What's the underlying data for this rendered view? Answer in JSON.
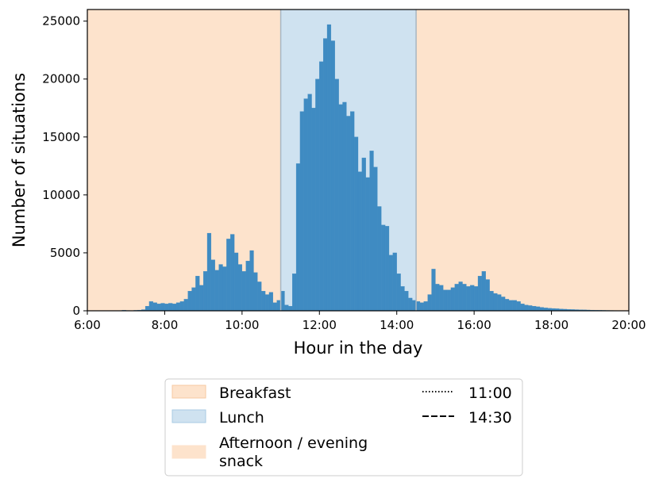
{
  "chart_data": {
    "type": "bar",
    "title": "",
    "xlabel": "Hour in the day",
    "ylabel": "Number of situations",
    "xlim_hours": [
      6,
      20
    ],
    "ylim": [
      0,
      26000
    ],
    "bin_width_hours": 0.1,
    "x_ticks": [
      {
        "hour": 6,
        "label": "6:00"
      },
      {
        "hour": 8,
        "label": "8:00"
      },
      {
        "hour": 10,
        "label": "10:00"
      },
      {
        "hour": 12,
        "label": "12:00"
      },
      {
        "hour": 14,
        "label": "14:00"
      },
      {
        "hour": 16,
        "label": "16:00"
      },
      {
        "hour": 18,
        "label": "18:00"
      },
      {
        "hour": 20,
        "label": "20:00"
      }
    ],
    "y_ticks": [
      {
        "value": 0,
        "label": "0"
      },
      {
        "value": 5000,
        "label": "5000"
      },
      {
        "value": 10000,
        "label": "10000"
      },
      {
        "value": 15000,
        "label": "15000"
      },
      {
        "value": 20000,
        "label": "20000"
      },
      {
        "value": 25000,
        "label": "25000"
      }
    ],
    "grid": false,
    "bar_color": "#3f8bc2",
    "bins": [
      {
        "x": 6.0,
        "y": 0
      },
      {
        "x": 6.1,
        "y": 0
      },
      {
        "x": 6.2,
        "y": 0
      },
      {
        "x": 6.3,
        "y": 0
      },
      {
        "x": 6.4,
        "y": 0
      },
      {
        "x": 6.5,
        "y": 0
      },
      {
        "x": 6.6,
        "y": 0
      },
      {
        "x": 6.7,
        "y": 0
      },
      {
        "x": 6.8,
        "y": 0
      },
      {
        "x": 6.9,
        "y": 50
      },
      {
        "x": 7.0,
        "y": 30
      },
      {
        "x": 7.1,
        "y": 20
      },
      {
        "x": 7.2,
        "y": 40
      },
      {
        "x": 7.3,
        "y": 60
      },
      {
        "x": 7.4,
        "y": 100
      },
      {
        "x": 7.5,
        "y": 400
      },
      {
        "x": 7.6,
        "y": 800
      },
      {
        "x": 7.7,
        "y": 700
      },
      {
        "x": 7.8,
        "y": 600
      },
      {
        "x": 7.9,
        "y": 650
      },
      {
        "x": 8.0,
        "y": 600
      },
      {
        "x": 8.1,
        "y": 650
      },
      {
        "x": 8.2,
        "y": 600
      },
      {
        "x": 8.3,
        "y": 700
      },
      {
        "x": 8.4,
        "y": 800
      },
      {
        "x": 8.5,
        "y": 1000
      },
      {
        "x": 8.6,
        "y": 1700
      },
      {
        "x": 8.7,
        "y": 2000
      },
      {
        "x": 8.8,
        "y": 3000
      },
      {
        "x": 8.9,
        "y": 2200
      },
      {
        "x": 9.0,
        "y": 3400
      },
      {
        "x": 9.1,
        "y": 6700
      },
      {
        "x": 9.2,
        "y": 4400
      },
      {
        "x": 9.3,
        "y": 3500
      },
      {
        "x": 9.4,
        "y": 4000
      },
      {
        "x": 9.5,
        "y": 3800
      },
      {
        "x": 9.6,
        "y": 6200
      },
      {
        "x": 9.7,
        "y": 6600
      },
      {
        "x": 9.8,
        "y": 5000
      },
      {
        "x": 9.9,
        "y": 4000
      },
      {
        "x": 10.0,
        "y": 3400
      },
      {
        "x": 10.1,
        "y": 4300
      },
      {
        "x": 10.2,
        "y": 5200
      },
      {
        "x": 10.3,
        "y": 3300
      },
      {
        "x": 10.4,
        "y": 2500
      },
      {
        "x": 10.5,
        "y": 1700
      },
      {
        "x": 10.6,
        "y": 1400
      },
      {
        "x": 10.7,
        "y": 1600
      },
      {
        "x": 10.8,
        "y": 700
      },
      {
        "x": 10.9,
        "y": 900
      },
      {
        "x": 11.0,
        "y": 1700
      },
      {
        "x": 11.1,
        "y": 500
      },
      {
        "x": 11.2,
        "y": 400
      },
      {
        "x": 11.3,
        "y": 3200
      },
      {
        "x": 11.4,
        "y": 12700
      },
      {
        "x": 11.5,
        "y": 17200
      },
      {
        "x": 11.6,
        "y": 18300
      },
      {
        "x": 11.7,
        "y": 18700
      },
      {
        "x": 11.8,
        "y": 17500
      },
      {
        "x": 11.9,
        "y": 20000
      },
      {
        "x": 12.0,
        "y": 21500
      },
      {
        "x": 12.1,
        "y": 23500
      },
      {
        "x": 12.2,
        "y": 24700
      },
      {
        "x": 12.3,
        "y": 23300
      },
      {
        "x": 12.4,
        "y": 20000
      },
      {
        "x": 12.5,
        "y": 17800
      },
      {
        "x": 12.6,
        "y": 18000
      },
      {
        "x": 12.7,
        "y": 16800
      },
      {
        "x": 12.8,
        "y": 17200
      },
      {
        "x": 12.9,
        "y": 15000
      },
      {
        "x": 13.0,
        "y": 12000
      },
      {
        "x": 13.1,
        "y": 13200
      },
      {
        "x": 13.2,
        "y": 11500
      },
      {
        "x": 13.3,
        "y": 13800
      },
      {
        "x": 13.4,
        "y": 12400
      },
      {
        "x": 13.5,
        "y": 9000
      },
      {
        "x": 13.6,
        "y": 7400
      },
      {
        "x": 13.7,
        "y": 7300
      },
      {
        "x": 13.8,
        "y": 4800
      },
      {
        "x": 13.9,
        "y": 5000
      },
      {
        "x": 14.0,
        "y": 3200
      },
      {
        "x": 14.1,
        "y": 2100
      },
      {
        "x": 14.2,
        "y": 1700
      },
      {
        "x": 14.3,
        "y": 1100
      },
      {
        "x": 14.4,
        "y": 900
      },
      {
        "x": 14.5,
        "y": 800
      },
      {
        "x": 14.6,
        "y": 700
      },
      {
        "x": 14.7,
        "y": 800
      },
      {
        "x": 14.8,
        "y": 1400
      },
      {
        "x": 14.9,
        "y": 3600
      },
      {
        "x": 15.0,
        "y": 2300
      },
      {
        "x": 15.1,
        "y": 2200
      },
      {
        "x": 15.2,
        "y": 1800
      },
      {
        "x": 15.3,
        "y": 1800
      },
      {
        "x": 15.4,
        "y": 2000
      },
      {
        "x": 15.5,
        "y": 2300
      },
      {
        "x": 15.6,
        "y": 2500
      },
      {
        "x": 15.7,
        "y": 2300
      },
      {
        "x": 15.8,
        "y": 2100
      },
      {
        "x": 15.9,
        "y": 2200
      },
      {
        "x": 16.0,
        "y": 2100
      },
      {
        "x": 16.1,
        "y": 3000
      },
      {
        "x": 16.2,
        "y": 3400
      },
      {
        "x": 16.3,
        "y": 2700
      },
      {
        "x": 16.4,
        "y": 1700
      },
      {
        "x": 16.5,
        "y": 1500
      },
      {
        "x": 16.6,
        "y": 1400
      },
      {
        "x": 16.7,
        "y": 1200
      },
      {
        "x": 16.8,
        "y": 1000
      },
      {
        "x": 16.9,
        "y": 900
      },
      {
        "x": 17.0,
        "y": 900
      },
      {
        "x": 17.1,
        "y": 800
      },
      {
        "x": 17.2,
        "y": 600
      },
      {
        "x": 17.3,
        "y": 500
      },
      {
        "x": 17.4,
        "y": 450
      },
      {
        "x": 17.5,
        "y": 400
      },
      {
        "x": 17.6,
        "y": 350
      },
      {
        "x": 17.7,
        "y": 300
      },
      {
        "x": 17.8,
        "y": 250
      },
      {
        "x": 17.9,
        "y": 220
      },
      {
        "x": 18.0,
        "y": 200
      },
      {
        "x": 18.1,
        "y": 180
      },
      {
        "x": 18.2,
        "y": 160
      },
      {
        "x": 18.3,
        "y": 140
      },
      {
        "x": 18.4,
        "y": 120
      },
      {
        "x": 18.5,
        "y": 110
      },
      {
        "x": 18.6,
        "y": 100
      },
      {
        "x": 18.7,
        "y": 90
      },
      {
        "x": 18.8,
        "y": 80
      },
      {
        "x": 18.9,
        "y": 70
      },
      {
        "x": 19.0,
        "y": 60
      },
      {
        "x": 19.1,
        "y": 50
      },
      {
        "x": 19.2,
        "y": 45
      },
      {
        "x": 19.3,
        "y": 40
      },
      {
        "x": 19.4,
        "y": 35
      },
      {
        "x": 19.5,
        "y": 30
      },
      {
        "x": 19.6,
        "y": 25
      },
      {
        "x": 19.7,
        "y": 20
      },
      {
        "x": 19.8,
        "y": 15
      },
      {
        "x": 19.9,
        "y": 10
      }
    ],
    "regions": [
      {
        "name": "Breakfast",
        "start_hour": 6,
        "end_hour": 11,
        "color": "#fde3cc"
      },
      {
        "name": "Lunch",
        "start_hour": 11,
        "end_hour": 14.5,
        "color": "#cfe2f0"
      },
      {
        "name": "Afternoon / evening snack",
        "start_hour": 14.5,
        "end_hour": 20,
        "color": "#fde3cc"
      }
    ],
    "vlines": [
      {
        "label": "11:00",
        "hour": 11,
        "style": "dotted"
      },
      {
        "label": "14:30",
        "hour": 14.5,
        "style": "dashed"
      }
    ],
    "legend": {
      "placement": "below",
      "entries": [
        {
          "kind": "patch",
          "color": "#fde3cc",
          "edge": "#f6c9a2",
          "line1": "Breakfast",
          "line2": ""
        },
        {
          "kind": "patch",
          "color": "#cfe2f0",
          "edge": "#a9cbe3",
          "line1": "Lunch",
          "line2": ""
        },
        {
          "kind": "patch",
          "color": "#fde3cc",
          "edge": "#fde3cc",
          "line1": "Afternoon / evening",
          "line2": "snack"
        },
        {
          "kind": "line",
          "style": "dotted",
          "line1": "11:00",
          "line2": ""
        },
        {
          "kind": "line",
          "style": "dashed",
          "line1": "14:30",
          "line2": ""
        }
      ]
    }
  }
}
